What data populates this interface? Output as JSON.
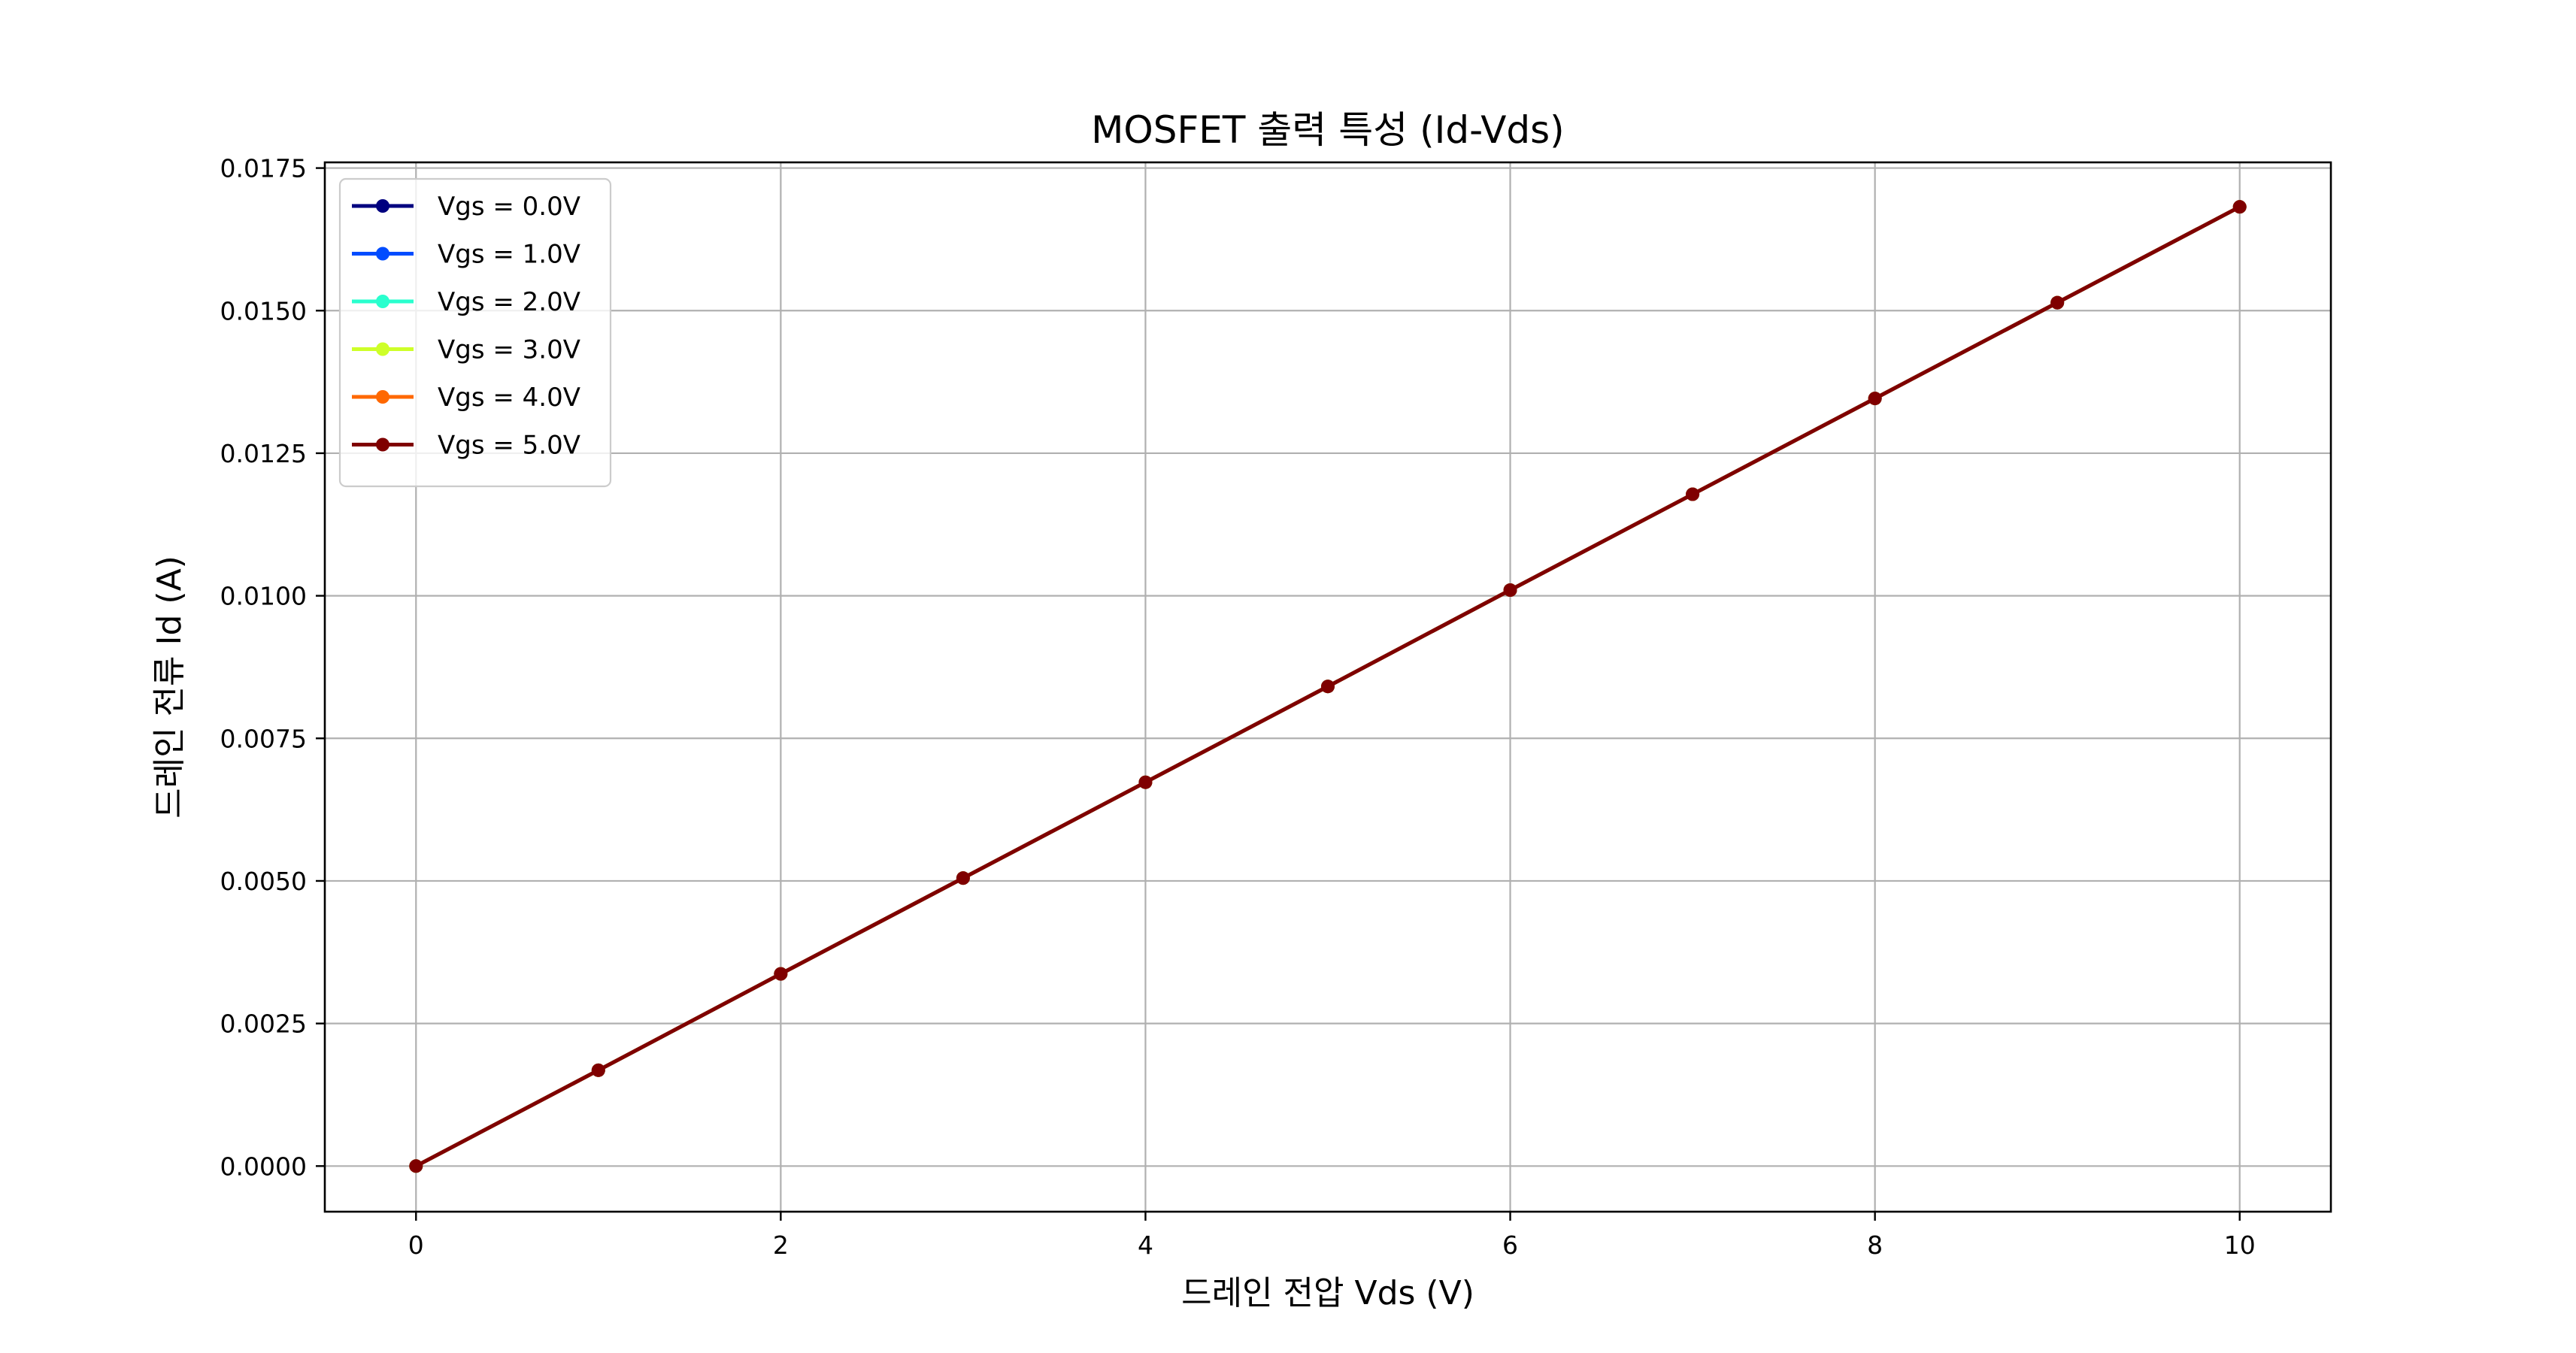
{
  "chart_data": {
    "type": "line",
    "title": "MOSFET 출력 특성 (Id-Vds)",
    "xlabel": "드레인 전압 Vds (V)",
    "ylabel": "드레인 전류 Id (A)",
    "xlim": [
      -0.5,
      10.5
    ],
    "ylim": [
      -0.0008,
      0.0176
    ],
    "xticks": [
      0,
      2,
      4,
      6,
      8,
      10
    ],
    "xtick_labels": [
      "0",
      "2",
      "4",
      "6",
      "8",
      "10"
    ],
    "yticks": [
      0,
      0.0025,
      0.005,
      0.0075,
      0.01,
      0.0125,
      0.015,
      0.0175
    ],
    "ytick_labels": [
      "0.0000",
      "0.0025",
      "0.0050",
      "0.0075",
      "0.0100",
      "0.0125",
      "0.0150",
      "0.0175"
    ],
    "grid": true,
    "legend_position": "top-left",
    "x": [
      0,
      1,
      2,
      3,
      4,
      5,
      6,
      7,
      8,
      9,
      10
    ],
    "series": [
      {
        "name": "Vgs = 0.0V",
        "color": "#00007f",
        "values": [
          0,
          0.00168,
          0.00337,
          0.00505,
          0.00673,
          0.00841,
          0.0101,
          0.01178,
          0.01346,
          0.01514,
          0.01682
        ]
      },
      {
        "name": "Vgs = 1.0V",
        "color": "#004cff",
        "values": [
          0,
          0.00168,
          0.00337,
          0.00505,
          0.00673,
          0.00841,
          0.0101,
          0.01178,
          0.01346,
          0.01514,
          0.01682
        ]
      },
      {
        "name": "Vgs = 2.0V",
        "color": "#29ffce",
        "values": [
          0,
          0.00168,
          0.00337,
          0.00505,
          0.00673,
          0.00841,
          0.0101,
          0.01178,
          0.01346,
          0.01514,
          0.01682
        ]
      },
      {
        "name": "Vgs = 3.0V",
        "color": "#ceff29",
        "values": [
          0,
          0.00168,
          0.00337,
          0.00505,
          0.00673,
          0.00841,
          0.0101,
          0.01178,
          0.01346,
          0.01514,
          0.01682
        ]
      },
      {
        "name": "Vgs = 4.0V",
        "color": "#ff6800",
        "values": [
          0,
          0.00168,
          0.00337,
          0.00505,
          0.00673,
          0.00841,
          0.0101,
          0.01178,
          0.01346,
          0.01514,
          0.01682
        ]
      },
      {
        "name": "Vgs = 5.0V",
        "color": "#7f0000",
        "values": [
          0,
          0.00168,
          0.00337,
          0.00505,
          0.00673,
          0.00841,
          0.0101,
          0.01178,
          0.01346,
          0.01514,
          0.01682
        ]
      }
    ]
  }
}
